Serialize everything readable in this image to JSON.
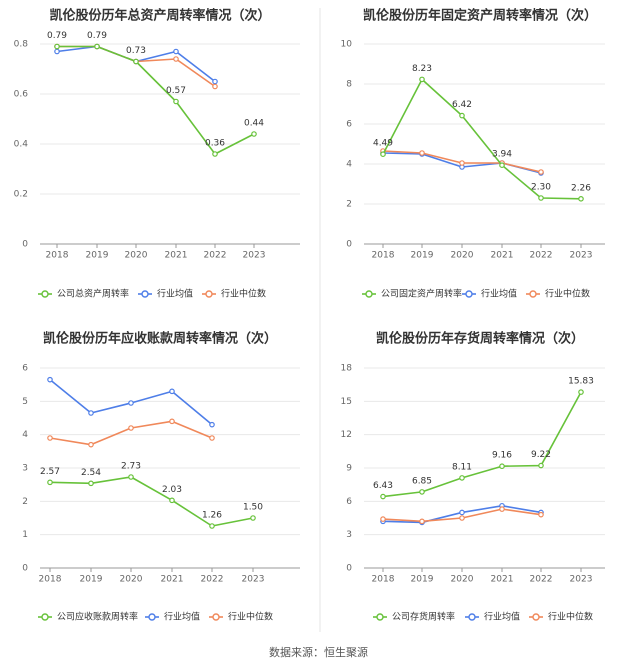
{
  "source_text": "数据来源：恒生聚源",
  "colors": {
    "company": "#67c23a",
    "avg": "#4e7ee8",
    "median": "#f0885a"
  },
  "chart_data": [
    {
      "type": "line",
      "title": "凯伦股份历年总资产周转率情况（次）",
      "categories": [
        "2018",
        "2019",
        "2020",
        "2021",
        "2022",
        "2023"
      ],
      "ylim": [
        0,
        0.8
      ],
      "yticks": [
        0,
        0.2,
        0.4,
        0.6,
        0.8
      ],
      "ytick_labels": [
        "0",
        "0.2",
        "0.4",
        "0.6",
        "0.8"
      ],
      "series": [
        {
          "name": "公司总资产周转率",
          "color": "#67c23a",
          "values": [
            0.79,
            0.79,
            0.73,
            0.57,
            0.36,
            0.44
          ],
          "labels": [
            "0.79",
            "0.79",
            "0.73",
            "0.57",
            "0.36",
            "0.44"
          ]
        },
        {
          "name": "行业均值",
          "color": "#4e7ee8",
          "values": [
            0.77,
            0.79,
            0.73,
            0.77,
            0.65,
            null
          ]
        },
        {
          "name": "行业中位数",
          "color": "#f0885a",
          "values": [
            0.79,
            0.79,
            0.73,
            0.74,
            0.63,
            null
          ]
        }
      ]
    },
    {
      "type": "line",
      "title": "凯伦股份历年固定资产周转率情况（次）",
      "categories": [
        "2018",
        "2019",
        "2020",
        "2021",
        "2022",
        "2023"
      ],
      "ylim": [
        0,
        10
      ],
      "yticks": [
        0,
        2,
        4,
        6,
        8,
        10
      ],
      "ytick_labels": [
        "0",
        "2",
        "4",
        "6",
        "8",
        "10"
      ],
      "series": [
        {
          "name": "公司固定资产周转率",
          "color": "#67c23a",
          "values": [
            4.49,
            8.23,
            6.42,
            3.94,
            2.3,
            2.26
          ],
          "labels": [
            "4.49",
            "8.23",
            "6.42",
            "3.94",
            "2.30",
            "2.26"
          ]
        },
        {
          "name": "行业均值",
          "color": "#4e7ee8",
          "values": [
            4.55,
            4.5,
            3.85,
            4.05,
            3.55,
            null
          ]
        },
        {
          "name": "行业中位数",
          "color": "#f0885a",
          "values": [
            4.65,
            4.55,
            4.05,
            4.05,
            3.6,
            null
          ]
        }
      ]
    },
    {
      "type": "line",
      "title": "凯伦股份历年应收账款周转率情况（次）",
      "categories": [
        "2018",
        "2019",
        "2020",
        "2021",
        "2022",
        "2023"
      ],
      "ylim": [
        0,
        6
      ],
      "yticks": [
        0,
        1,
        2,
        3,
        4,
        5,
        6
      ],
      "ytick_labels": [
        "0",
        "1",
        "2",
        "3",
        "4",
        "5",
        "6"
      ],
      "series": [
        {
          "name": "公司应收账款周转率",
          "color": "#67c23a",
          "values": [
            2.57,
            2.54,
            2.73,
            2.03,
            1.26,
            1.5
          ],
          "labels": [
            "2.57",
            "2.54",
            "2.73",
            "2.03",
            "1.26",
            "1.50"
          ]
        },
        {
          "name": "行业均值",
          "color": "#4e7ee8",
          "values": [
            5.65,
            4.65,
            4.95,
            5.3,
            4.3,
            null
          ]
        },
        {
          "name": "行业中位数",
          "color": "#f0885a",
          "values": [
            3.9,
            3.7,
            4.2,
            4.4,
            3.9,
            null
          ]
        }
      ]
    },
    {
      "type": "line",
      "title": "凯伦股份历年存货周转率情况（次）",
      "categories": [
        "2018",
        "2019",
        "2020",
        "2021",
        "2022",
        "2023"
      ],
      "ylim": [
        0,
        18
      ],
      "yticks": [
        0,
        3,
        6,
        9,
        12,
        15,
        18
      ],
      "ytick_labels": [
        "0",
        "3",
        "6",
        "9",
        "12",
        "15",
        "18"
      ],
      "series": [
        {
          "name": "公司存货周转率",
          "color": "#67c23a",
          "values": [
            6.43,
            6.85,
            8.11,
            9.16,
            9.22,
            15.83
          ],
          "labels": [
            "6.43",
            "6.85",
            "8.11",
            "9.16",
            "9.22",
            "15.83"
          ]
        },
        {
          "name": "行业均值",
          "color": "#4e7ee8",
          "values": [
            4.2,
            4.1,
            5.0,
            5.6,
            5.0,
            null
          ]
        },
        {
          "name": "行业中位数",
          "color": "#f0885a",
          "values": [
            4.4,
            4.2,
            4.5,
            5.3,
            4.8,
            null
          ]
        }
      ]
    }
  ]
}
